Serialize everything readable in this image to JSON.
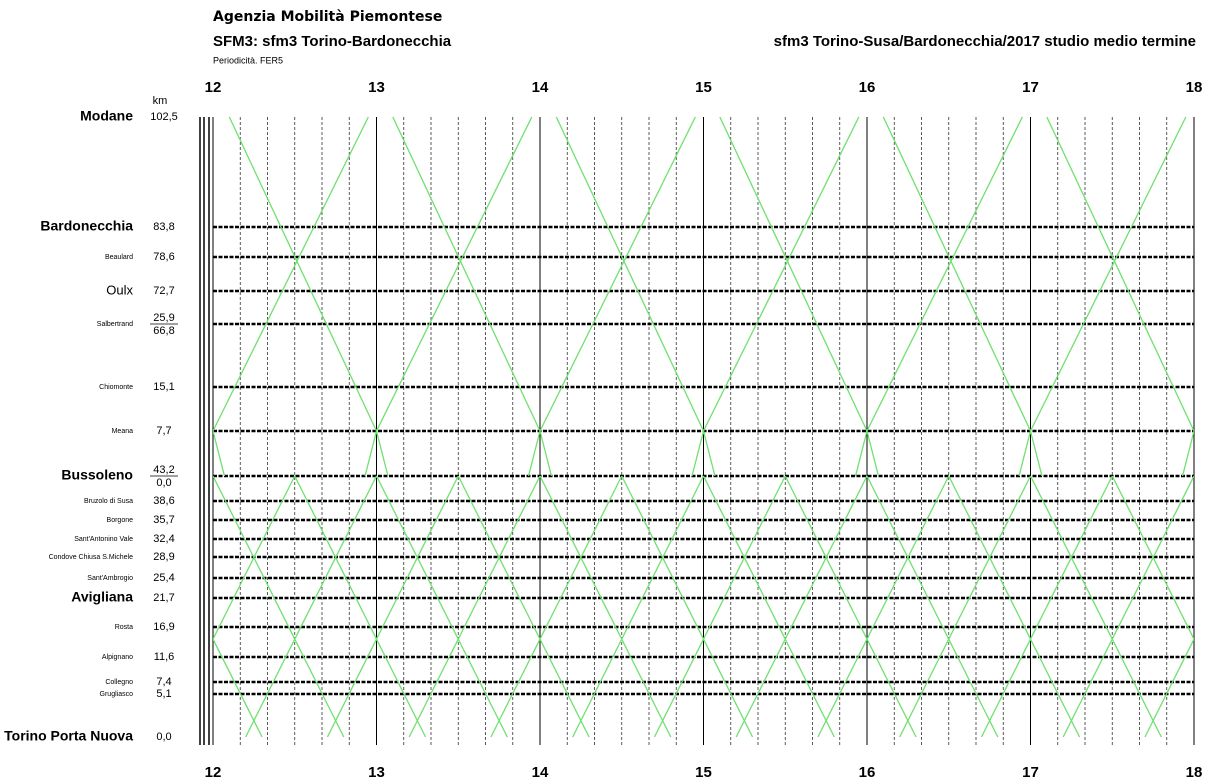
{
  "header": {
    "agency": "Agenzia Mobilità Piemontese",
    "title": "SFM3: sfm3 Torino-Bardonecchia",
    "periodicity": "Periodicità. FER5",
    "study": "sfm3 Torino-Susa/Bardonecchia/2017 studio medio termine"
  },
  "km_heading": "km",
  "hours": [
    "12",
    "13",
    "14",
    "15",
    "16",
    "17",
    "18"
  ],
  "stations": [
    {
      "name": "Modane",
      "km": [
        "102,5"
      ]
    },
    {
      "name": "Bardonecchia",
      "km": [
        "83,8"
      ]
    },
    {
      "name": "Beaulard",
      "km": [
        "78,6"
      ]
    },
    {
      "name": "Oulx",
      "km": [
        "72,7"
      ]
    },
    {
      "name": "Salbertrand",
      "km": [
        "25,9",
        "66,8"
      ]
    },
    {
      "name": "Chiomonte",
      "km": [
        "15,1"
      ]
    },
    {
      "name": "Meana",
      "km": [
        "7,7"
      ]
    },
    {
      "name": "Bussoleno",
      "km": [
        "43,2",
        "0,0"
      ]
    },
    {
      "name": "Bruzolo di Susa",
      "km": [
        "38,6"
      ]
    },
    {
      "name": "Borgone",
      "km": [
        "35,7"
      ]
    },
    {
      "name": "Sant'Antonino Vale",
      "km": [
        "32,4"
      ]
    },
    {
      "name": "Condove Chiusa S.Michele",
      "km": [
        "28,9"
      ]
    },
    {
      "name": "Sant'Ambrogio",
      "km": [
        "25,4"
      ]
    },
    {
      "name": "Avigliana",
      "km": [
        "21,7"
      ]
    },
    {
      "name": "Rosta",
      "km": [
        "16,9"
      ]
    },
    {
      "name": "Alpignano",
      "km": [
        "11,6"
      ]
    },
    {
      "name": "Collegno",
      "km": [
        "7,4"
      ]
    },
    {
      "name": "Grugliasco",
      "km": [
        "5,1"
      ]
    },
    {
      "name": "Torino Porta Nuova",
      "km": [
        "0,0"
      ]
    }
  ]
}
